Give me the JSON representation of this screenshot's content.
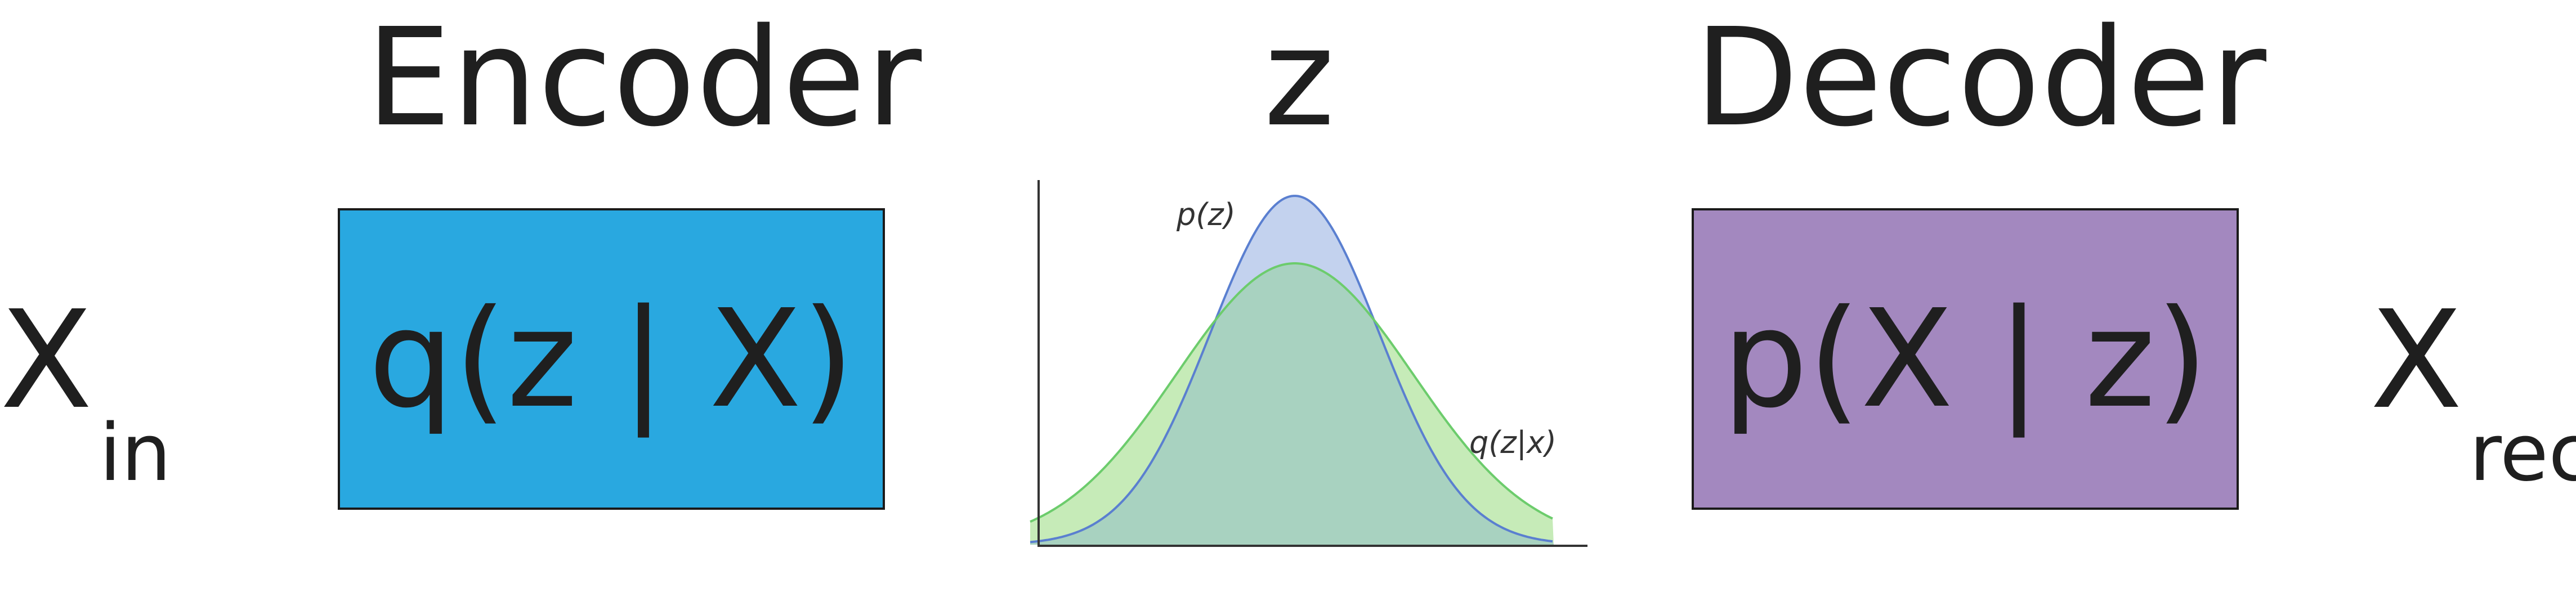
{
  "headings": {
    "encoder": "Encoder",
    "latent": "z",
    "decoder": "Decoder"
  },
  "input": {
    "symbol": "X",
    "subscript": "in"
  },
  "output": {
    "symbol": "X",
    "subscript": "rec"
  },
  "encoder_box": {
    "label": "q(z | X)",
    "fill_color": "#29a8e0"
  },
  "decoder_box": {
    "label": "p(X | z)",
    "fill_color": "#a388bf"
  },
  "distribution_plot": {
    "prior_label": "p(z)",
    "posterior_label": "q(z|x)",
    "prior_color": "#5a7fd0",
    "prior_fill": "#c3d2ee",
    "posterior_color": "#6ccc6c",
    "posterior_fill": "#a8d2c0",
    "prior_sigma": 1.0,
    "posterior_sigma": 1.4
  }
}
